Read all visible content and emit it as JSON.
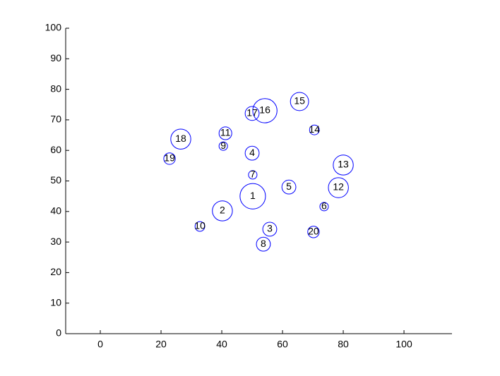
{
  "chart_data": {
    "type": "bubble",
    "labels": [
      "1",
      "2",
      "3",
      "4",
      "5",
      "6",
      "7",
      "8",
      "9",
      "10",
      "11",
      "12",
      "13",
      "14",
      "15",
      "16",
      "17",
      "18",
      "19",
      "20"
    ],
    "x": [
      50.2,
      40.2,
      55.8,
      50.0,
      62.1,
      73.7,
      50.2,
      53.7,
      40.5,
      32.8,
      41.2,
      78.4,
      80.0,
      70.5,
      65.6,
      54.2,
      50.0,
      26.5,
      22.8,
      70.2
    ],
    "y": [
      45.0,
      40.2,
      34.2,
      59.1,
      48.0,
      41.6,
      52.0,
      29.3,
      61.4,
      35.1,
      65.6,
      47.8,
      55.2,
      66.7,
      76.0,
      73.0,
      72.1,
      63.7,
      57.3,
      33.3
    ],
    "sizes": [
      4.2,
      3.3,
      2.3,
      2.3,
      2.3,
      1.4,
      1.4,
      2.3,
      1.4,
      1.6,
      2.1,
      3.3,
      3.3,
      1.6,
      3.0,
      4.0,
      2.3,
      3.3,
      1.9,
      1.9
    ],
    "color": "#0000ff",
    "xlim": [
      -11.4,
      115.8
    ],
    "ylim": [
      0,
      100
    ],
    "xticks": [
      0,
      20,
      40,
      60,
      80,
      100
    ],
    "yticks": [
      0,
      10,
      20,
      30,
      40,
      50,
      60,
      70,
      80,
      90,
      100
    ]
  }
}
